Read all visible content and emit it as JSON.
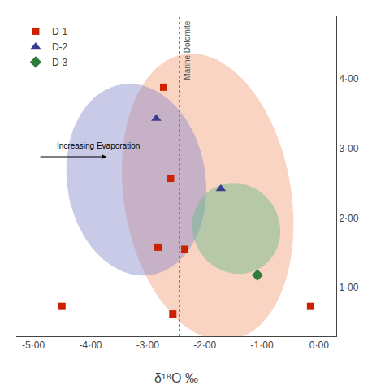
{
  "chart_data": {
    "type": "scatter",
    "xlabel": "δ¹⁸O ‰",
    "xlim": [
      -5.3,
      0.3
    ],
    "ylim": [
      0.3,
      4.9
    ],
    "xticks": [
      {
        "value": -5.0,
        "label": "-5·00"
      },
      {
        "value": -4.0,
        "label": "-4·00"
      },
      {
        "value": -3.0,
        "label": "-3·00"
      },
      {
        "value": -2.0,
        "label": "-2·00"
      },
      {
        "value": -1.0,
        "label": "-1·00"
      },
      {
        "value": 0.0,
        "label": "0·00"
      }
    ],
    "yticks": [
      {
        "value": 1.0,
        "label": "1·00"
      },
      {
        "value": 2.0,
        "label": "2·00"
      },
      {
        "value": 3.0,
        "label": "3·00"
      },
      {
        "value": 4.0,
        "label": "4·00"
      }
    ],
    "series": [
      {
        "name": "D-1",
        "color": "#cc2200",
        "marker": "square",
        "x": [
          -2.72,
          -2.6,
          -4.5,
          -2.82,
          -2.35,
          -0.15,
          -2.56
        ],
        "values": [
          3.88,
          2.57,
          0.73,
          1.58,
          1.55,
          0.73,
          0.62
        ]
      },
      {
        "name": "D-2",
        "color": "#3b3b8f",
        "marker": "triangle-up",
        "x": [
          -2.85,
          -1.72
        ],
        "values": [
          3.43,
          2.42
        ]
      },
      {
        "name": "D-3",
        "color": "#2e7d3a",
        "marker": "diamond",
        "x": [
          -1.08
        ],
        "values": [
          1.18
        ]
      }
    ],
    "regions": [
      {
        "center_x": -1.95,
        "center_y": 2.3,
        "width": 2.9,
        "height": 4.2,
        "angle": 15,
        "color": "#f4a07a"
      },
      {
        "center_x": -3.2,
        "center_y": 2.55,
        "width": 2.4,
        "height": 2.8,
        "angle": 20,
        "color": "#8888cc"
      },
      {
        "center_x": -1.45,
        "center_y": 1.85,
        "width": 1.55,
        "height": 1.3,
        "angle": -10,
        "color": "#66bb88"
      }
    ],
    "vertical_lines": [
      {
        "x": -2.45,
        "label": "Marine Dolomite",
        "line_style": "dotted"
      }
    ],
    "arrows": [
      {
        "x_start": -4.9,
        "x_end": -3.72,
        "y": 2.88,
        "label": "Increasing Evaporation"
      }
    ],
    "legend": "upper left",
    "grid": false
  }
}
